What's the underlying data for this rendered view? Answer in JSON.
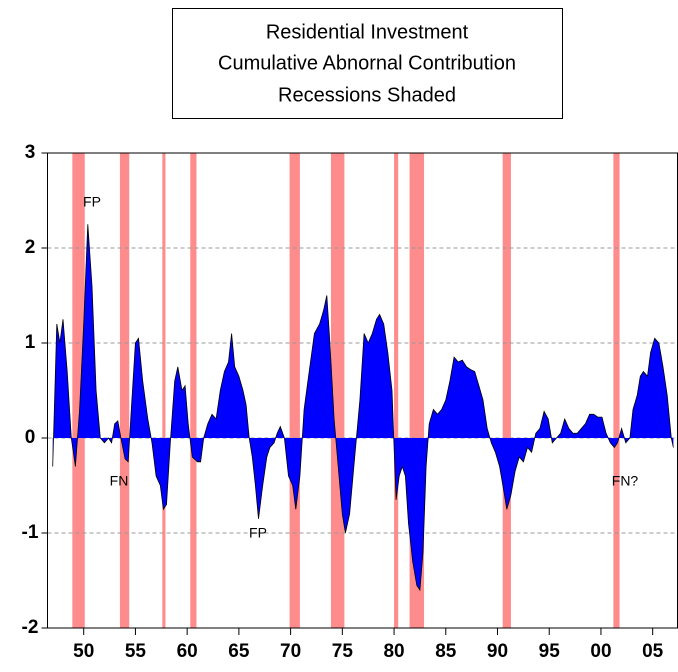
{
  "chart_data": {
    "type": "area",
    "title": [
      "Residential Investment",
      "Cumulative Abnornal Contribution",
      "Recessions Shaded"
    ],
    "color": "#0000ff",
    "line_color": "#000000",
    "shade_color": "#ff8c8c",
    "grid": true,
    "xlim": [
      1946.5,
      2007.4
    ],
    "ylim": [
      -2,
      3
    ],
    "yticks": [
      -2,
      -1,
      0,
      1,
      2,
      3
    ],
    "xticks": [
      {
        "value": 1950,
        "label": "50"
      },
      {
        "value": 1955,
        "label": "55"
      },
      {
        "value": 1960,
        "label": "60"
      },
      {
        "value": 1965,
        "label": "65"
      },
      {
        "value": 1970,
        "label": "70"
      },
      {
        "value": 1975,
        "label": "75"
      },
      {
        "value": 1980,
        "label": "80"
      },
      {
        "value": 1985,
        "label": "85"
      },
      {
        "value": 1990,
        "label": "90"
      },
      {
        "value": 1995,
        "label": "95"
      },
      {
        "value": 2000,
        "label": "00"
      },
      {
        "value": 2005,
        "label": "05"
      }
    ],
    "recessions": [
      [
        1948.9,
        1950.1
      ],
      [
        1953.5,
        1954.4
      ],
      [
        1957.6,
        1957.9
      ],
      [
        1960.3,
        1960.9
      ],
      [
        1969.9,
        1970.9
      ],
      [
        1973.9,
        1975.2
      ],
      [
        1980.0,
        1980.4
      ],
      [
        1981.5,
        1982.9
      ],
      [
        1990.5,
        1991.3
      ],
      [
        2001.2,
        2001.8
      ]
    ],
    "annotations": [
      "FP",
      "FN",
      "FP",
      "FN?"
    ],
    "x": [
      1947.0,
      1947.4,
      1947.7,
      1948.0,
      1948.4,
      1948.8,
      1949.2,
      1949.6,
      1950.0,
      1950.4,
      1950.8,
      1951.2,
      1951.6,
      1952.0,
      1952.4,
      1952.7,
      1953.0,
      1953.3,
      1953.6,
      1954.0,
      1954.3,
      1954.6,
      1955.0,
      1955.3,
      1955.7,
      1956.2,
      1956.6,
      1957.0,
      1957.4,
      1957.7,
      1958.0,
      1958.4,
      1958.8,
      1959.1,
      1959.5,
      1959.8,
      1960.1,
      1960.5,
      1961.0,
      1961.3,
      1961.6,
      1962.0,
      1962.4,
      1962.8,
      1963.2,
      1963.6,
      1964.0,
      1964.3,
      1964.6,
      1965.0,
      1965.4,
      1965.7,
      1966.0,
      1966.3,
      1966.6,
      1966.9,
      1967.3,
      1967.7,
      1968.0,
      1968.4,
      1968.7,
      1969.0,
      1969.4,
      1969.8,
      1970.2,
      1970.5,
      1970.9,
      1971.3,
      1971.8,
      1972.3,
      1972.8,
      1973.2,
      1973.5,
      1973.8,
      1974.2,
      1974.6,
      1975.0,
      1975.3,
      1975.7,
      1976.2,
      1976.7,
      1977.1,
      1977.5,
      1977.9,
      1978.3,
      1978.6,
      1979.0,
      1979.4,
      1979.8,
      1980.0,
      1980.2,
      1980.5,
      1980.8,
      1981.1,
      1981.4,
      1981.8,
      1982.2,
      1982.5,
      1982.8,
      1983.1,
      1983.4,
      1983.8,
      1984.2,
      1984.6,
      1985.0,
      1985.4,
      1985.8,
      1986.2,
      1986.6,
      1987.0,
      1987.4,
      1987.8,
      1988.2,
      1988.6,
      1989.0,
      1989.4,
      1989.8,
      1990.2,
      1990.6,
      1990.9,
      1991.3,
      1991.7,
      1992.1,
      1992.5,
      1992.9,
      1993.3,
      1993.7,
      1994.1,
      1994.5,
      1994.9,
      1995.3,
      1995.7,
      1996.1,
      1996.5,
      1996.9,
      1997.3,
      1997.7,
      1998.1,
      1998.5,
      1998.9,
      1999.3,
      1999.7,
      2000.1,
      2000.5,
      2000.9,
      2001.3,
      2001.6,
      2002.0,
      2002.4,
      2002.8,
      2003.1,
      2003.5,
      2003.8,
      2004.1,
      2004.5,
      2004.8,
      2005.2,
      2005.6,
      2006.0,
      2006.4,
      2006.8,
      2007.0
    ],
    "values": [
      -0.3,
      1.2,
      1.0,
      1.25,
      0.7,
      0.0,
      -0.3,
      0.3,
      1.2,
      2.25,
      1.6,
      0.5,
      0.0,
      -0.05,
      0.0,
      -0.05,
      0.15,
      0.18,
      0.0,
      -0.22,
      -0.25,
      0.3,
      1.0,
      1.05,
      0.6,
      0.2,
      -0.05,
      -0.4,
      -0.5,
      -0.75,
      -0.7,
      0.0,
      0.6,
      0.75,
      0.5,
      0.55,
      0.15,
      -0.2,
      -0.25,
      -0.25,
      0.0,
      0.15,
      0.25,
      0.2,
      0.5,
      0.7,
      0.8,
      1.1,
      0.75,
      0.65,
      0.5,
      0.35,
      0.0,
      -0.2,
      -0.5,
      -0.85,
      -0.5,
      -0.2,
      -0.1,
      -0.05,
      0.05,
      0.12,
      0.0,
      -0.4,
      -0.5,
      -0.75,
      -0.4,
      0.3,
      0.7,
      1.1,
      1.2,
      1.35,
      1.5,
      1.0,
      0.2,
      -0.3,
      -0.8,
      -1.0,
      -0.8,
      -0.2,
      0.4,
      1.1,
      1.0,
      1.1,
      1.25,
      1.3,
      1.2,
      0.9,
      0.5,
      -0.1,
      -0.65,
      -0.4,
      -0.3,
      -0.4,
      -0.9,
      -1.3,
      -1.55,
      -1.6,
      -1.2,
      -0.3,
      0.15,
      0.3,
      0.25,
      0.3,
      0.4,
      0.6,
      0.85,
      0.8,
      0.82,
      0.75,
      0.72,
      0.7,
      0.55,
      0.4,
      0.1,
      -0.05,
      -0.15,
      -0.3,
      -0.55,
      -0.75,
      -0.6,
      -0.35,
      -0.2,
      -0.25,
      -0.1,
      -0.15,
      0.05,
      0.1,
      0.28,
      0.2,
      -0.05,
      0.0,
      0.05,
      0.2,
      0.1,
      0.05,
      0.05,
      0.1,
      0.15,
      0.25,
      0.25,
      0.22,
      0.22,
      0.05,
      -0.05,
      -0.1,
      -0.05,
      0.1,
      -0.05,
      0.0,
      0.3,
      0.45,
      0.65,
      0.7,
      0.65,
      0.9,
      1.05,
      1.0,
      0.75,
      0.45,
      0.0,
      -0.1
    ]
  }
}
